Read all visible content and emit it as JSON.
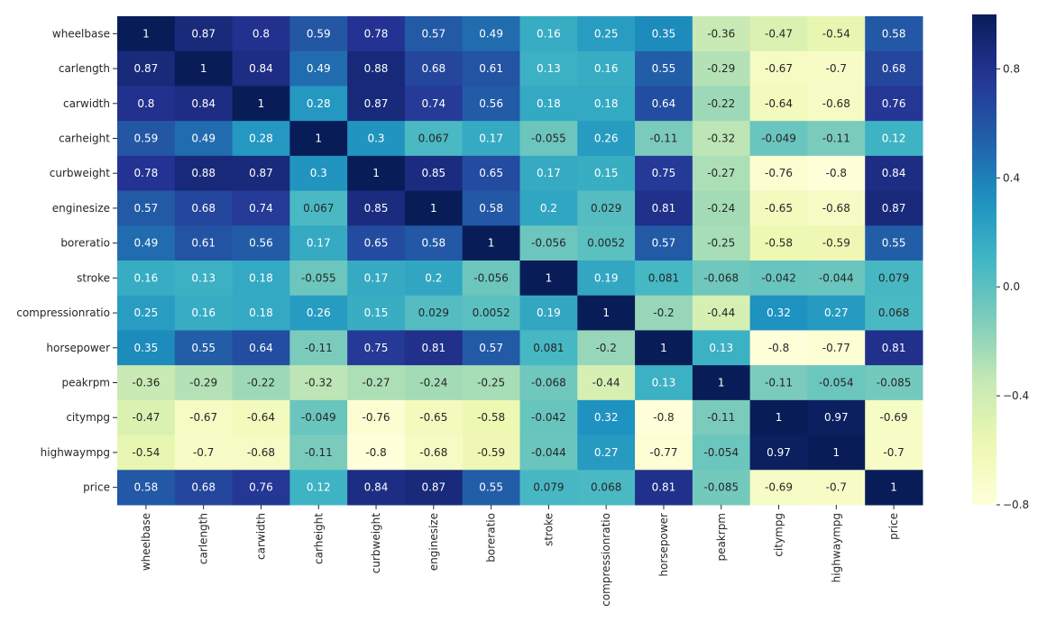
{
  "chart_data": {
    "type": "heatmap",
    "title": "",
    "xlabel": "",
    "ylabel": "",
    "colormap": "YlGnBu",
    "vmin": -0.8,
    "vmax": 1.0,
    "colorbar": {
      "ticks": [
        0.8,
        0.4,
        0.0,
        -0.4,
        -0.8
      ],
      "tick_labels": [
        "0.8",
        "0.4",
        "0.0",
        "−0.4",
        "−0.8"
      ],
      "placement": "right"
    },
    "labels": [
      "wheelbase",
      "carlength",
      "carwidth",
      "carheight",
      "curbweight",
      "enginesize",
      "boreratio",
      "stroke",
      "compressionratio",
      "horsepower",
      "peakrpm",
      "citympg",
      "highwaympg",
      "price"
    ],
    "values": [
      [
        1,
        0.87,
        0.8,
        0.59,
        0.78,
        0.57,
        0.49,
        0.16,
        0.25,
        0.35,
        -0.36,
        -0.47,
        -0.54,
        0.58
      ],
      [
        0.87,
        1,
        0.84,
        0.49,
        0.88,
        0.68,
        0.61,
        0.13,
        0.16,
        0.55,
        -0.29,
        -0.67,
        -0.7,
        0.68
      ],
      [
        0.8,
        0.84,
        1,
        0.28,
        0.87,
        0.74,
        0.56,
        0.18,
        0.18,
        0.64,
        -0.22,
        -0.64,
        -0.68,
        0.76
      ],
      [
        0.59,
        0.49,
        0.28,
        1,
        0.3,
        0.067,
        0.17,
        -0.055,
        0.26,
        -0.11,
        -0.32,
        -0.049,
        -0.11,
        0.12
      ],
      [
        0.78,
        0.88,
        0.87,
        0.3,
        1,
        0.85,
        0.65,
        0.17,
        0.15,
        0.75,
        -0.27,
        -0.76,
        -0.8,
        0.84
      ],
      [
        0.57,
        0.68,
        0.74,
        0.067,
        0.85,
        1,
        0.58,
        0.2,
        0.029,
        0.81,
        -0.24,
        -0.65,
        -0.68,
        0.87
      ],
      [
        0.49,
        0.61,
        0.56,
        0.17,
        0.65,
        0.58,
        1,
        -0.056,
        0.0052,
        0.57,
        -0.25,
        -0.58,
        -0.59,
        0.55
      ],
      [
        0.16,
        0.13,
        0.18,
        -0.055,
        0.17,
        0.2,
        -0.056,
        1,
        0.19,
        0.081,
        -0.068,
        -0.042,
        -0.044,
        0.079
      ],
      [
        0.25,
        0.16,
        0.18,
        0.26,
        0.15,
        0.029,
        0.0052,
        0.19,
        1,
        -0.2,
        -0.44,
        0.32,
        0.27,
        0.068
      ],
      [
        0.35,
        0.55,
        0.64,
        -0.11,
        0.75,
        0.81,
        0.57,
        0.081,
        -0.2,
        1,
        0.13,
        -0.8,
        -0.77,
        0.81
      ],
      [
        -0.36,
        -0.29,
        -0.22,
        -0.32,
        -0.27,
        -0.24,
        -0.25,
        -0.068,
        -0.44,
        0.13,
        1,
        -0.11,
        -0.054,
        -0.085
      ],
      [
        -0.47,
        -0.67,
        -0.64,
        -0.049,
        -0.76,
        -0.65,
        -0.58,
        -0.042,
        0.32,
        -0.8,
        -0.11,
        1,
        0.97,
        -0.69
      ],
      [
        -0.54,
        -0.7,
        -0.68,
        -0.11,
        -0.8,
        -0.68,
        -0.59,
        -0.044,
        0.27,
        -0.77,
        -0.054,
        0.97,
        1,
        -0.7
      ],
      [
        0.58,
        0.68,
        0.76,
        0.12,
        0.84,
        0.87,
        0.55,
        0.079,
        0.068,
        0.81,
        -0.085,
        -0.69,
        -0.7,
        1
      ]
    ]
  }
}
